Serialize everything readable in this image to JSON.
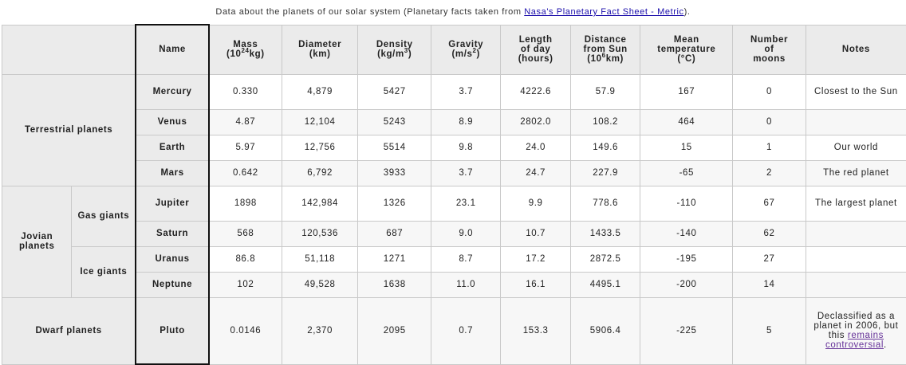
{
  "caption": {
    "prefix": "Data about the planets of our solar system (Planetary facts taken from ",
    "link": "Nasa's Planetary Fact Sheet - Metric",
    "suffix": ")."
  },
  "headers": {
    "name": "Name",
    "mass": "Mass",
    "mass_unit_a": "(10",
    "mass_unit_sup": "24",
    "mass_unit_b": "kg)",
    "diameter": "Diameter",
    "diameter_unit": "(km)",
    "density": "Density",
    "density_unit_a": "(kg/m",
    "density_unit_sup": "3",
    "density_unit_b": ")",
    "gravity": "Gravity",
    "gravity_unit_a": "(m/s",
    "gravity_unit_sup": "2",
    "gravity_unit_b": ")",
    "day_1": "Length",
    "day_2": "of day",
    "day_3": "(hours)",
    "dist_1": "Distance",
    "dist_2": "from Sun",
    "dist_3a": "(10",
    "dist_3sup": "6",
    "dist_3b": "km)",
    "temp_1": "Mean",
    "temp_2": "temperature",
    "temp_3": "(°C)",
    "moons_1": "Number",
    "moons_2": "of",
    "moons_3": "moons",
    "notes": "Notes"
  },
  "groups": {
    "terrestrial": "Terrestrial planets",
    "jovian": "Jovian planets",
    "gas": "Gas giants",
    "ice": "Ice giants",
    "dwarf": "Dwarf planets"
  },
  "planets": [
    {
      "name": "Mercury",
      "mass": "0.330",
      "diameter": "4,879",
      "density": "5427",
      "gravity": "3.7",
      "day": "4222.6",
      "distance": "57.9",
      "temp": "167",
      "moons": "0",
      "note": "Closest to the Sun"
    },
    {
      "name": "Venus",
      "mass": "4.87",
      "diameter": "12,104",
      "density": "5243",
      "gravity": "8.9",
      "day": "2802.0",
      "distance": "108.2",
      "temp": "464",
      "moons": "0",
      "note": ""
    },
    {
      "name": "Earth",
      "mass": "5.97",
      "diameter": "12,756",
      "density": "5514",
      "gravity": "9.8",
      "day": "24.0",
      "distance": "149.6",
      "temp": "15",
      "moons": "1",
      "note": "Our world"
    },
    {
      "name": "Mars",
      "mass": "0.642",
      "diameter": "6,792",
      "density": "3933",
      "gravity": "3.7",
      "day": "24.7",
      "distance": "227.9",
      "temp": "-65",
      "moons": "2",
      "note": "The red planet"
    },
    {
      "name": "Jupiter",
      "mass": "1898",
      "diameter": "142,984",
      "density": "1326",
      "gravity": "23.1",
      "day": "9.9",
      "distance": "778.6",
      "temp": "-110",
      "moons": "67",
      "note": "The largest planet"
    },
    {
      "name": "Saturn",
      "mass": "568",
      "diameter": "120,536",
      "density": "687",
      "gravity": "9.0",
      "day": "10.7",
      "distance": "1433.5",
      "temp": "-140",
      "moons": "62",
      "note": ""
    },
    {
      "name": "Uranus",
      "mass": "86.8",
      "diameter": "51,118",
      "density": "1271",
      "gravity": "8.7",
      "day": "17.2",
      "distance": "2872.5",
      "temp": "-195",
      "moons": "27",
      "note": ""
    },
    {
      "name": "Neptune",
      "mass": "102",
      "diameter": "49,528",
      "density": "1638",
      "gravity": "11.0",
      "day": "16.1",
      "distance": "4495.1",
      "temp": "-200",
      "moons": "14",
      "note": ""
    },
    {
      "name": "Pluto",
      "mass": "0.0146",
      "diameter": "2,370",
      "density": "2095",
      "gravity": "0.7",
      "day": "153.3",
      "distance": "5906.4",
      "temp": "-225",
      "moons": "5",
      "note": ""
    }
  ],
  "pluto_note": {
    "text": "Declassified as a planet in 2006, but this",
    "link": "remains controversial",
    "end": "."
  }
}
